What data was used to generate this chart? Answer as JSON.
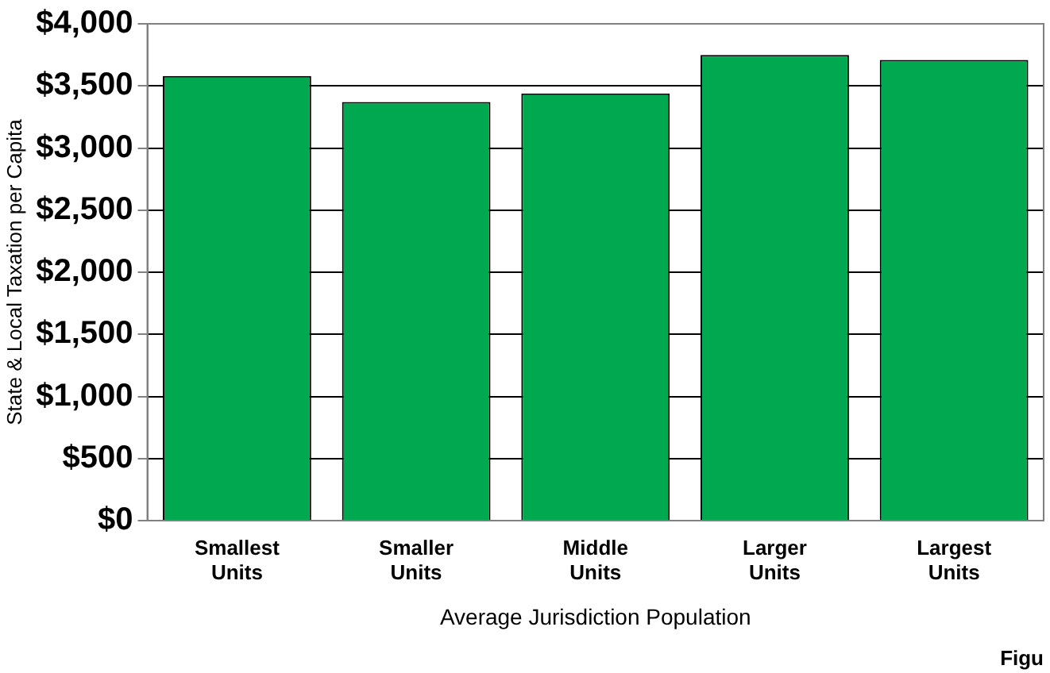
{
  "chart_data": {
    "type": "bar",
    "xlabel": "Average Jurisdiction Population",
    "ylabel": "State & Local Taxation per Capita",
    "categories": [
      "Smallest Units",
      "Smaller Units",
      "Middle Units",
      "Larger Units",
      "Largest Units"
    ],
    "values": [
      3580,
      3370,
      3440,
      3750,
      3710
    ],
    "color": "#00a94f",
    "ylim": [
      0,
      4000
    ],
    "yticks": [
      {
        "value": 0,
        "label": "$0"
      },
      {
        "value": 500,
        "label": "$500"
      },
      {
        "value": 1000,
        "label": "$1,000"
      },
      {
        "value": 1500,
        "label": "$1,500"
      },
      {
        "value": 2000,
        "label": "$2,000"
      },
      {
        "value": 2500,
        "label": "$2,500"
      },
      {
        "value": 3000,
        "label": "$3,000"
      },
      {
        "value": 3500,
        "label": "$3,500"
      },
      {
        "value": 4000,
        "label": "$4,000"
      }
    ],
    "grid": "y",
    "legend": false,
    "annotations": [
      "Figu"
    ]
  }
}
